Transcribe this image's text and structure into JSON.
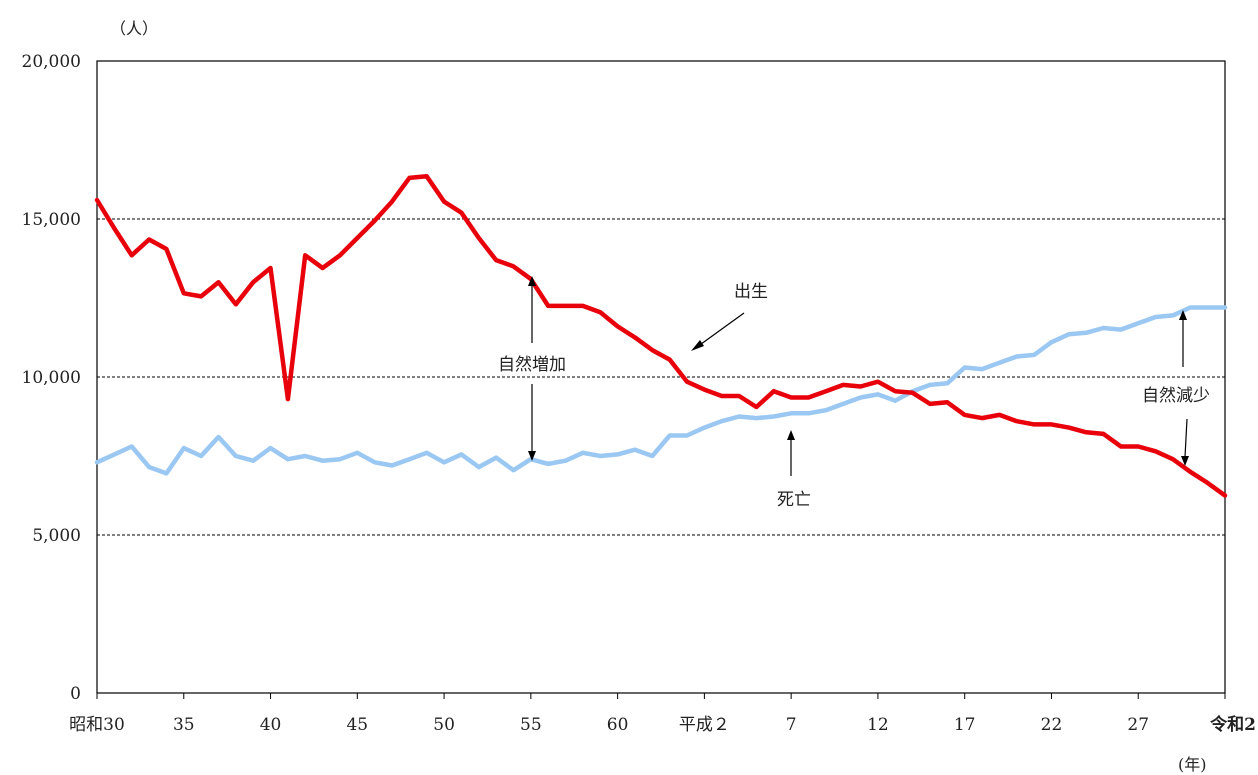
{
  "chart_data": {
    "type": "line",
    "y_unit_label": "（人）",
    "x_unit_label": "(年)",
    "x_tick_labels": [
      "昭和30",
      "35",
      "40",
      "45",
      "50",
      "55",
      "60",
      "平成２",
      "7",
      "12",
      "17",
      "22",
      "27",
      "令和2"
    ],
    "y_tick_labels": [
      "0",
      "5,000",
      "10,000",
      "15,000",
      "20,000"
    ],
    "ylim": [
      0,
      20000
    ],
    "grid": "horizontal-dashed",
    "series": [
      {
        "name": "出生",
        "color": "#e8000b",
        "values": [
          15600,
          14700,
          13850,
          14350,
          14050,
          12650,
          12550,
          13000,
          12300,
          13000,
          13450,
          9300,
          13850,
          13450,
          13850,
          14400,
          14950,
          15550,
          16300,
          16350,
          15550,
          15200,
          14400,
          13700,
          13500,
          13100,
          12250,
          12250,
          12250,
          12050,
          11600,
          11250,
          10850,
          10550,
          9850,
          9600,
          9400,
          9400,
          9050,
          9550,
          9350,
          9350,
          9550,
          9750,
          9700,
          9850,
          9550,
          9500,
          9150,
          9200,
          8800,
          8700,
          8800,
          8600,
          8500,
          8500,
          8400,
          8250,
          8200,
          7800,
          7800,
          7650,
          7400,
          7000,
          6650,
          6250
        ]
      },
      {
        "name": "死亡",
        "color": "#9ac8f2",
        "values": [
          7300,
          7550,
          7800,
          7150,
          6950,
          7750,
          7500,
          8100,
          7500,
          7350,
          7750,
          7400,
          7500,
          7350,
          7400,
          7600,
          7300,
          7200,
          7400,
          7600,
          7300,
          7550,
          7150,
          7450,
          7050,
          7400,
          7250,
          7350,
          7600,
          7500,
          7550,
          7700,
          7500,
          8150,
          8150,
          8400,
          8600,
          8750,
          8700,
          8750,
          8850,
          8850,
          8950,
          9150,
          9350,
          9450,
          9250,
          9550,
          9750,
          9800,
          10300,
          10250,
          10450,
          10650,
          10700,
          11100,
          11350,
          11400,
          11550,
          11500,
          11700,
          11900,
          11950,
          12200,
          12200,
          12200
        ]
      }
    ],
    "annotations": [
      {
        "text": "出生"
      },
      {
        "text": "死亡"
      },
      {
        "text": "自然増加"
      },
      {
        "text": "自然減少"
      }
    ]
  }
}
